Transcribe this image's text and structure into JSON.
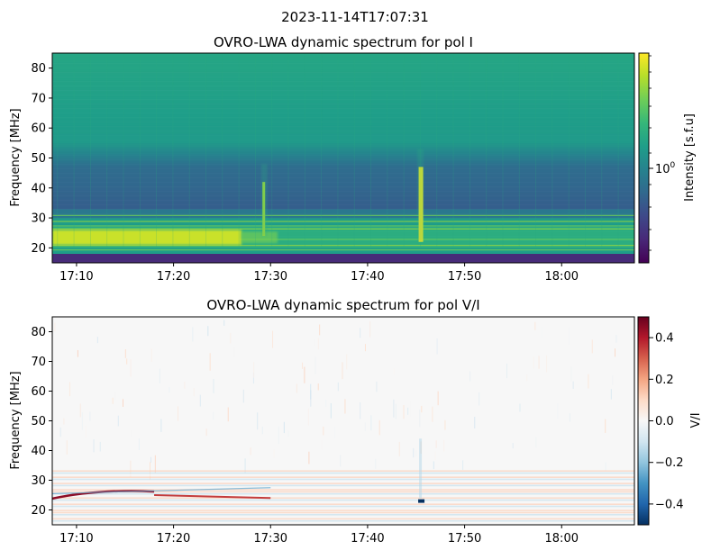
{
  "figure": {
    "suptitle": "2023-11-14T17:07:31"
  },
  "colors": {
    "viridis": [
      "#440154",
      "#482878",
      "#3e4989",
      "#31688e",
      "#26828e",
      "#1f9e89",
      "#35b779",
      "#6ece58",
      "#b5de2b",
      "#fde725"
    ],
    "rdbu_r": [
      "#053061",
      "#2166ac",
      "#4393c3",
      "#92c5de",
      "#d1e5f0",
      "#f7f7f7",
      "#fddbc7",
      "#f4a582",
      "#d6604d",
      "#b2182b",
      "#67001f"
    ],
    "text": "#000000"
  },
  "chart_data": [
    {
      "type": "heatmap",
      "title": "OVRO-LWA dynamic spectrum for pol I",
      "xlabel": "",
      "ylabel": "Frequency [MHz]",
      "x_ticks": [
        "17:10",
        "17:20",
        "17:30",
        "17:40",
        "17:50",
        "18:00"
      ],
      "x_tick_values_min": [
        10,
        20,
        30,
        40,
        50,
        60
      ],
      "xlim_min": [
        7.5,
        67.5
      ],
      "xlim_labels": [
        "17:07:30",
        "18:07:30"
      ],
      "y_ticks": [
        20,
        30,
        40,
        50,
        60,
        70,
        80
      ],
      "ylim": [
        15,
        85
      ],
      "colormap": "viridis",
      "colorbar": {
        "label": "Intensity [s.f.u]",
        "ticks": [
          "10^0"
        ],
        "scale": "log"
      },
      "features": [
        {
          "name": "background_low",
          "freq_range": [
            33,
            47
          ],
          "level": 0.3
        },
        {
          "name": "background_high",
          "freq_range": [
            50,
            85
          ],
          "level": 0.58
        },
        {
          "name": "strong_band",
          "freq_range": [
            21,
            26
          ],
          "time_range_min": [
            7.5,
            27
          ],
          "level": 0.92
        },
        {
          "name": "burst_1",
          "time_min": 29.3,
          "freq_range": [
            24,
            42
          ],
          "level": 0.85
        },
        {
          "name": "burst_2",
          "time_min": 45.4,
          "freq_range": [
            22,
            47
          ],
          "level": 0.97
        },
        {
          "name": "rfi_floor",
          "freq_range": [
            15,
            18
          ],
          "level": 0.12
        }
      ]
    },
    {
      "type": "heatmap",
      "title": "OVRO-LWA dynamic spectrum for pol V/I",
      "xlabel": "",
      "ylabel": "Frequency [MHz]",
      "x_ticks": [
        "17:10",
        "17:20",
        "17:30",
        "17:40",
        "17:50",
        "18:00"
      ],
      "x_tick_values_min": [
        10,
        20,
        30,
        40,
        50,
        60
      ],
      "xlim_min": [
        7.5,
        67.5
      ],
      "y_ticks": [
        20,
        30,
        40,
        50,
        60,
        70,
        80
      ],
      "ylim": [
        15,
        85
      ],
      "colormap": "RdBu_r",
      "colorbar": {
        "label": "V/I",
        "ticks": [
          "0.4",
          "0.2",
          "0.0",
          "−0.2",
          "−0.4"
        ],
        "tick_values": [
          0.4,
          0.2,
          0.0,
          -0.2,
          -0.4
        ],
        "range": [
          -0.5,
          0.5
        ]
      },
      "features": [
        {
          "name": "positive_drift_1",
          "time_range_min": [
            7.5,
            18
          ],
          "freq_range": [
            24.5,
            27
          ],
          "value": 0.45
        },
        {
          "name": "positive_drift_2",
          "time_range_min": [
            18,
            30
          ],
          "freq_range": [
            24,
            25.5
          ],
          "value": 0.35
        },
        {
          "name": "negative_blob",
          "time_min": 45.4,
          "freq": 23,
          "value": -0.5
        }
      ]
    }
  ]
}
